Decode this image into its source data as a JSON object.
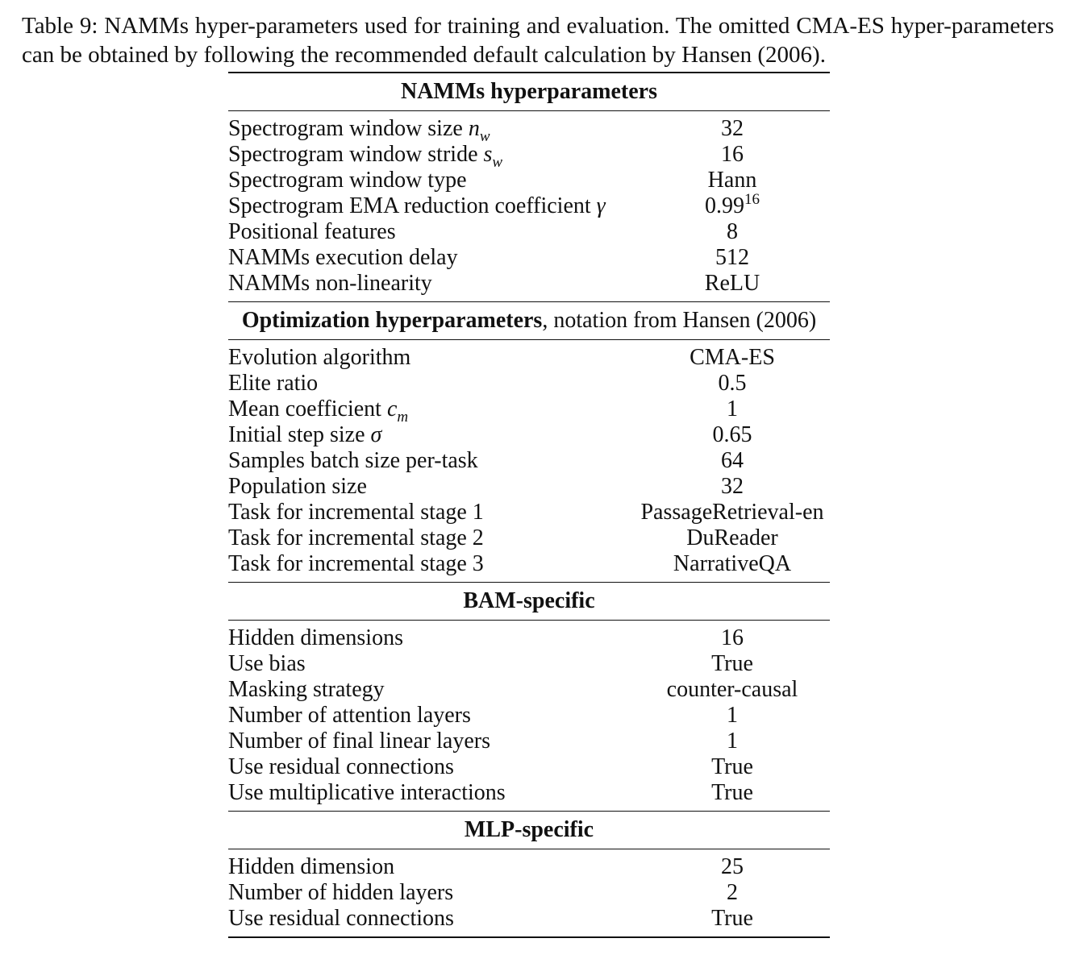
{
  "caption": "Table 9: NAMMs hyper-parameters used for training and evaluation. The omitted CMA-ES hyper-parameters can be obtained by following the recommended default calculation by Hansen (2006).",
  "sections": [
    {
      "title_bold": "NAMMs hyperparameters",
      "title_rest": "",
      "rows": [
        {
          "param": "Spectrogram window size ",
          "math": "n",
          "sub": "w",
          "value": "32"
        },
        {
          "param": "Spectrogram window stride ",
          "math": "s",
          "sub": "w",
          "value": "16"
        },
        {
          "param": "Spectrogram window type",
          "value": "Hann"
        },
        {
          "param": "Spectrogram EMA reduction coefficient ",
          "math": "γ",
          "value": "0.99",
          "value_sup": "16"
        },
        {
          "param": "Positional features",
          "value": "8"
        },
        {
          "param": "NAMMs execution delay",
          "value": "512"
        },
        {
          "param": "NAMMs non-linearity",
          "value": "ReLU"
        }
      ]
    },
    {
      "title_bold": "Optimization hyperparameters",
      "title_rest": ", notation from Hansen (2006)",
      "rows": [
        {
          "param": "Evolution algorithm",
          "value": "CMA-ES"
        },
        {
          "param": "Elite ratio",
          "value": "0.5"
        },
        {
          "param": "Mean coefficient ",
          "math": "c",
          "sub": "m",
          "value": "1"
        },
        {
          "param": "Initial step size ",
          "math": "σ",
          "value": "0.65"
        },
        {
          "param": "Samples batch size per-task",
          "value": "64"
        },
        {
          "param": "Population size",
          "value": "32"
        },
        {
          "param": "Task for incremental stage 1",
          "value": "PassageRetrieval-en"
        },
        {
          "param": "Task for incremental stage 2",
          "value": "DuReader"
        },
        {
          "param": "Task for incremental stage 3",
          "value": "NarrativeQA"
        }
      ]
    },
    {
      "title_bold": "BAM-specific",
      "title_rest": "",
      "rows": [
        {
          "param": "Hidden dimensions",
          "value": "16"
        },
        {
          "param": "Use bias",
          "value": "True"
        },
        {
          "param": "Masking strategy",
          "value": "counter-causal"
        },
        {
          "param": "Number of attention layers",
          "value": "1"
        },
        {
          "param": "Number of final linear layers",
          "value": "1"
        },
        {
          "param": "Use residual connections",
          "value": "True"
        },
        {
          "param": "Use multiplicative interactions",
          "value": "True"
        }
      ]
    },
    {
      "title_bold": "MLP-specific",
      "title_rest": "",
      "rows": [
        {
          "param": "Hidden dimension",
          "value": "25"
        },
        {
          "param": "Number of hidden layers",
          "value": "2"
        },
        {
          "param": "Use residual connections",
          "value": "True"
        }
      ]
    }
  ]
}
